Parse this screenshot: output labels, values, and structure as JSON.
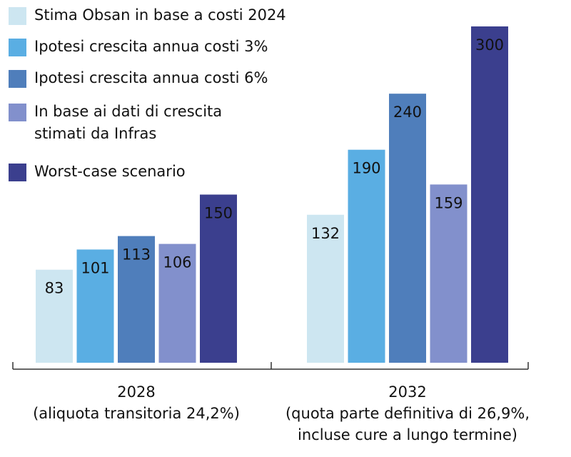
{
  "chart_data": {
    "type": "bar",
    "categories": [
      [
        "2028",
        "(aliquota transitoria 24,2%)"
      ],
      [
        "2032",
        "(quota parte definitiva di 26,9%,",
        "incluse cure a lungo termine)"
      ]
    ],
    "series": [
      {
        "name": "Stima Obsan in base a costi 2024",
        "color": "#cde6f1",
        "values": [
          83,
          132
        ]
      },
      {
        "name": "Ipotesi crescita annua costi 3%",
        "color": "#5aaee3",
        "values": [
          101,
          190
        ]
      },
      {
        "name": "Ipotesi crescita annua costi 6%",
        "color": "#4f7ebb",
        "values": [
          113,
          240
        ]
      },
      {
        "name": "In base ai dati di crescita\nstimati da Infras",
        "color": "#8290cc",
        "values": [
          106,
          159
        ]
      },
      {
        "name": "Worst-case scenario",
        "color": "#3b3f8e",
        "values": [
          150,
          300
        ],
        "label_color": "#ffffff"
      }
    ],
    "ylim": [
      0,
      300
    ]
  }
}
